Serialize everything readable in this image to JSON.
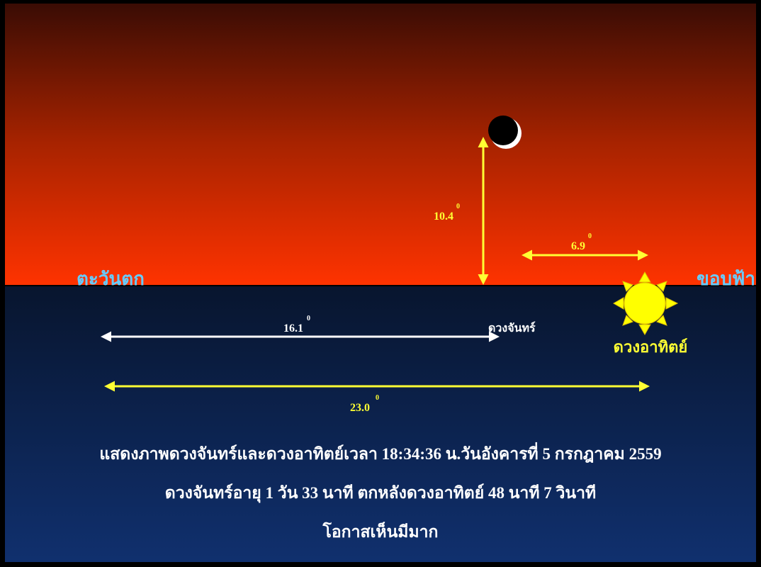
{
  "horizon": {
    "west": "ตะวันตก",
    "label": "ขอบฟ้า"
  },
  "moon": {
    "label": "ดวงจันทร์"
  },
  "sun": {
    "label": "ดวงอาทิตย์"
  },
  "measurements": [
    {
      "label": "10.4",
      "unit": "0"
    },
    {
      "label": "6.9",
      "unit": "0"
    },
    {
      "label": "16.1",
      "unit": "0"
    },
    {
      "label": "23.0",
      "unit": "0"
    }
  ],
  "caption": [
    "แสดงภาพดวงจันทร์และดวงอาทิตย์เวลา 18:34:36 น.วันอังคารที่ 5 กรกฎาคม 2559",
    "ดวงจันทร์อายุ 1 วัน 33 นาที ตกหลังดวงอาทิตย์ 48 นาที 7 วินาที",
    "โอกาสเห็นมีมาก"
  ]
}
